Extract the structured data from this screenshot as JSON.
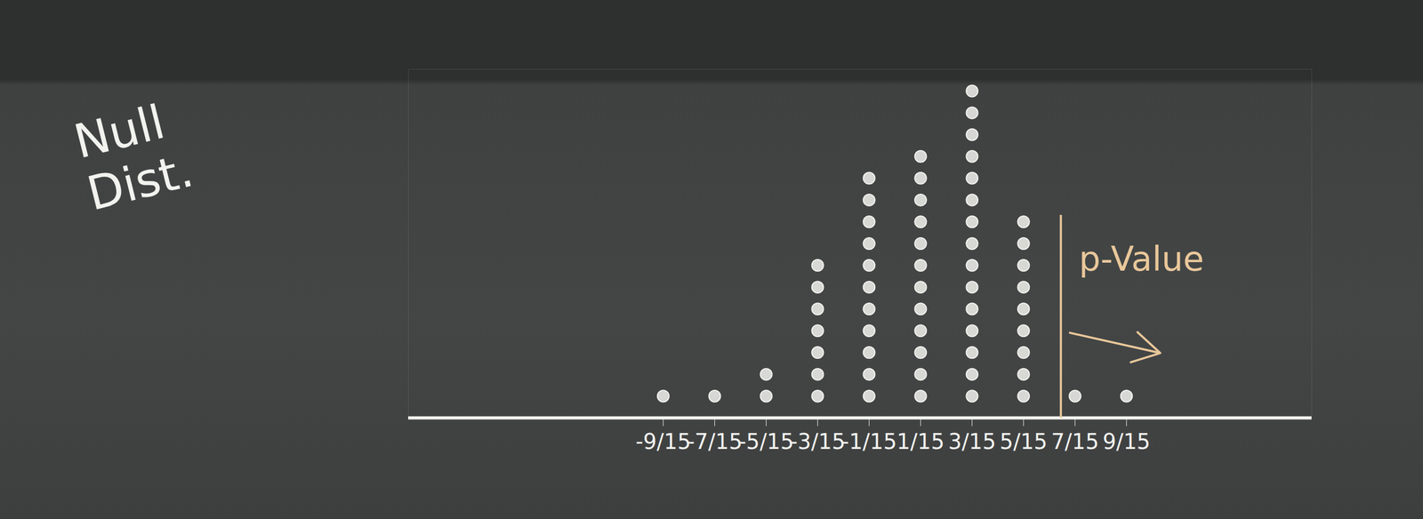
{
  "chart_data": {
    "type": "dot",
    "title": "Null Dist.",
    "x": [
      -0.6,
      -0.4667,
      -0.3333,
      -0.2,
      -0.0667,
      0.0667,
      0.2,
      0.3333,
      0.4667,
      0.6
    ],
    "values": [
      1,
      1,
      2,
      7,
      11,
      12,
      15,
      9,
      1,
      1
    ],
    "color": "#f2f2ee",
    "xlim": [
      -1.26,
      1.08
    ],
    "xticks": [
      {
        "value": -0.6,
        "label": "-9/15"
      },
      {
        "value": -0.4667,
        "label": "-7/15"
      },
      {
        "value": -0.3333,
        "label": "-5/15"
      },
      {
        "value": -0.2,
        "label": "-3/15"
      },
      {
        "value": -0.0667,
        "label": "-1/15"
      },
      {
        "value": 0.0667,
        "label": "1/15"
      },
      {
        "value": 0.2,
        "label": "3/15"
      },
      {
        "value": 0.3333,
        "label": "5/15"
      },
      {
        "value": 0.4667,
        "label": "7/15"
      },
      {
        "value": 0.6,
        "label": "9/15"
      }
    ],
    "ylim": [
      0,
      16
    ],
    "tick_labels": "x",
    "annotation": {
      "text": "p-Value",
      "x": 0.43
    }
  }
}
